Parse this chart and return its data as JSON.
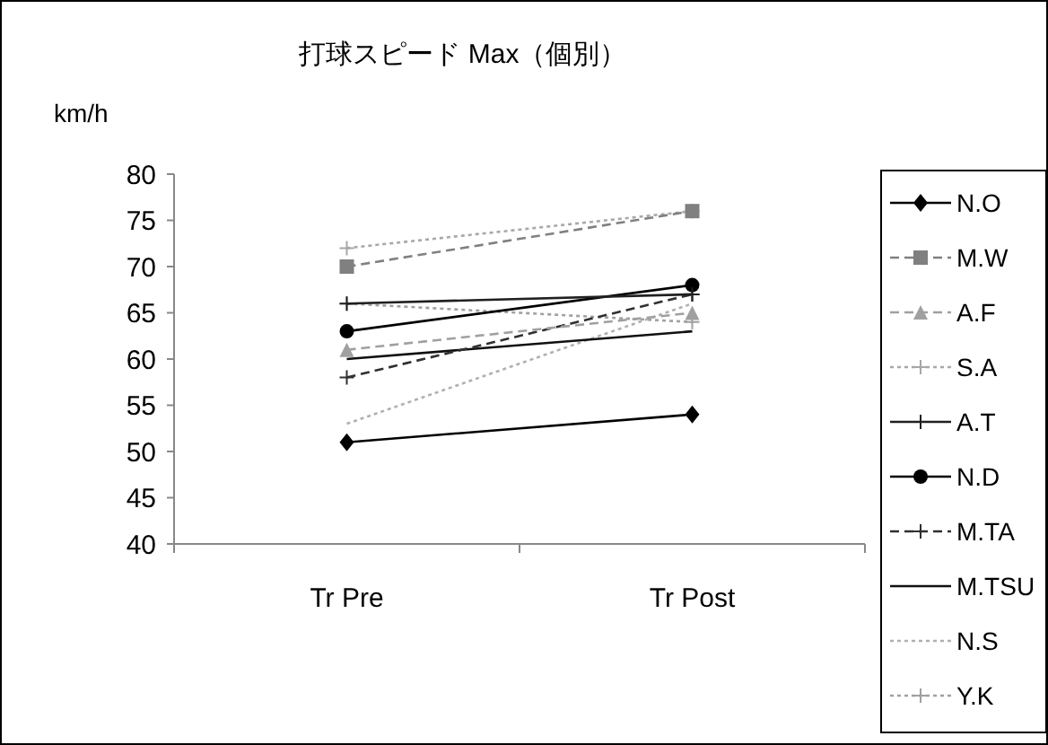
{
  "chart_data": {
    "type": "line",
    "title": "打球スピード Max（個別）",
    "ylabel": "km/h",
    "categories": [
      "Tr Pre",
      "Tr Post"
    ],
    "ylim": [
      40,
      80
    ],
    "yticks": [
      40,
      45,
      50,
      55,
      60,
      65,
      70,
      75,
      80
    ],
    "grid": false,
    "legend": "right",
    "series": [
      {
        "name": "N.O",
        "color": "#000000",
        "values": [
          51,
          54
        ],
        "marker": "diamond",
        "line_style": "solid"
      },
      {
        "name": "M.W",
        "color": "#808080",
        "values": [
          70,
          76
        ],
        "marker": "square",
        "line_style": "dashed"
      },
      {
        "name": "A.F",
        "color": "#a0a0a0",
        "values": [
          61,
          65
        ],
        "marker": "triangle",
        "line_style": "dashed"
      },
      {
        "name": "S.A",
        "color": "#a8a8a8",
        "values": [
          72,
          76
        ],
        "marker": "cross",
        "line_style": "dotted"
      },
      {
        "name": "A.T",
        "color": "#202020",
        "values": [
          66,
          67
        ],
        "marker": "cross",
        "line_style": "solid"
      },
      {
        "name": "N.D",
        "color": "#000000",
        "values": [
          63,
          68
        ],
        "marker": "circle",
        "line_style": "solid"
      },
      {
        "name": "M.TA",
        "color": "#303030",
        "values": [
          58,
          67
        ],
        "marker": "cross",
        "line_style": "dashed"
      },
      {
        "name": "M.TSU",
        "color": "#101010",
        "values": [
          60,
          63
        ],
        "marker": "none",
        "line_style": "solid"
      },
      {
        "name": "N.S",
        "color": "#b0b0b0",
        "values": [
          53,
          66
        ],
        "marker": "none",
        "line_style": "dotted"
      },
      {
        "name": "Y.K",
        "color": "#a0a0a0",
        "values": [
          66,
          64
        ],
        "marker": "cross",
        "line_style": "dotted"
      }
    ]
  }
}
